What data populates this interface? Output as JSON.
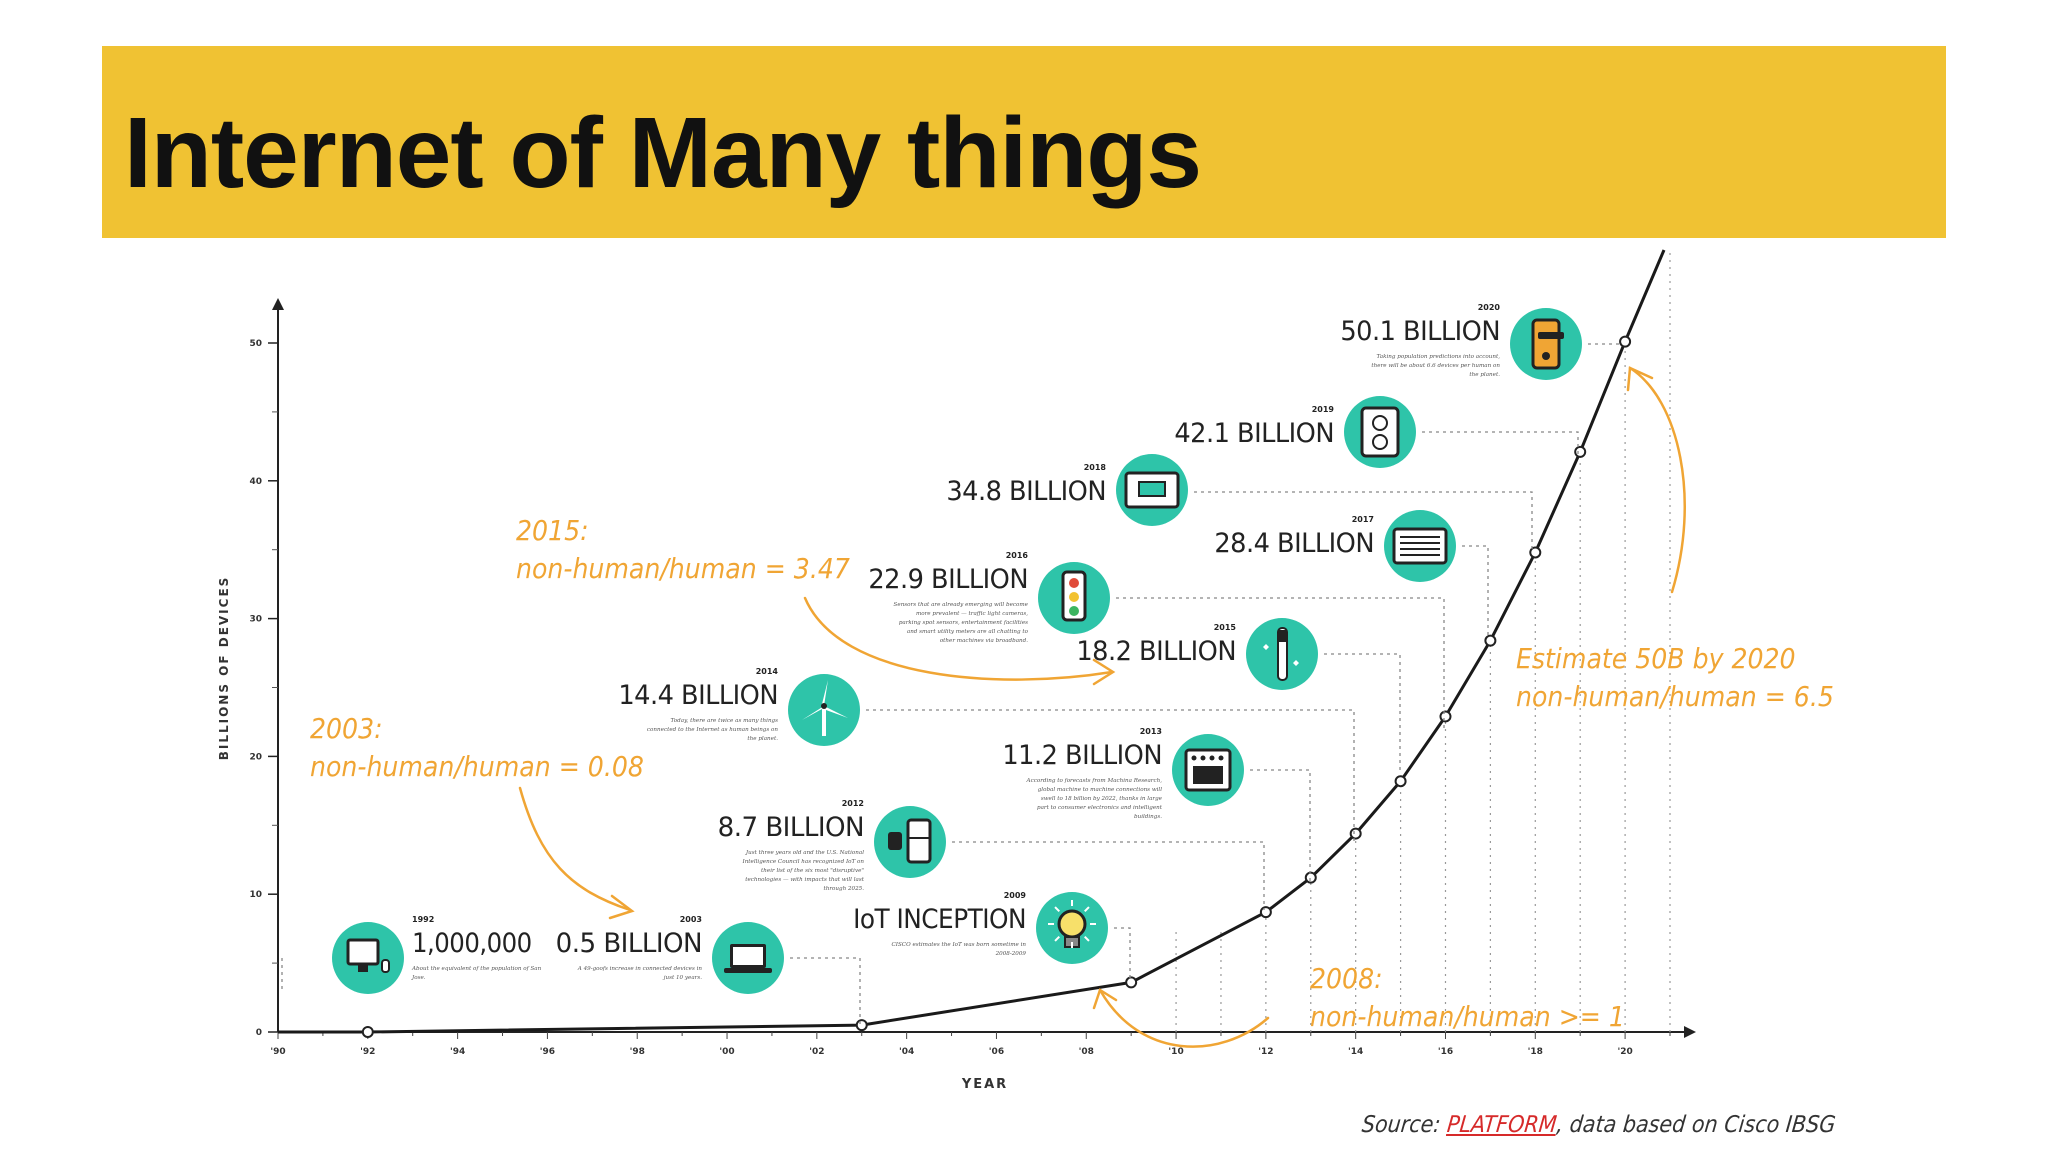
{
  "slide": {
    "title": "Internet of Many things",
    "source_prefix": "Source:",
    "source_link": "PLATFORM",
    "source_suffix": ", data based on Cisco IBSG"
  },
  "colors": {
    "banner": "#f0c233",
    "teal": "#2ec4a9",
    "orange": "#f0a534",
    "line": "#1a1a1a"
  },
  "chart_data": {
    "type": "line",
    "xlabel": "YEAR",
    "ylabel": "BILLIONS OF DEVICES",
    "xlim": [
      1990,
      2021
    ],
    "ylim": [
      0,
      50
    ],
    "x_ticks": [
      "'90",
      "'92",
      "'94",
      "'96",
      "'98",
      "'00",
      "'02",
      "'04",
      "'06",
      "'08",
      "'10",
      "'12",
      "'14",
      "'16",
      "'18",
      "'20"
    ],
    "y_ticks": [
      "0",
      "10",
      "20",
      "30",
      "40",
      "50"
    ],
    "points": [
      {
        "x": 1990,
        "y": 0
      },
      {
        "x": 1992,
        "y": 0.001
      },
      {
        "x": 2003,
        "y": 0.5
      },
      {
        "x": 2009,
        "y": 3.6
      },
      {
        "x": 2012,
        "y": 8.7
      },
      {
        "x": 2013,
        "y": 11.2
      },
      {
        "x": 2014,
        "y": 14.4
      },
      {
        "x": 2015,
        "y": 18.2
      },
      {
        "x": 2016,
        "y": 22.9
      },
      {
        "x": 2017,
        "y": 28.4
      },
      {
        "x": 2018,
        "y": 34.8
      },
      {
        "x": 2019,
        "y": 42.1
      },
      {
        "x": 2020,
        "y": 50.1
      }
    ],
    "milestones": [
      {
        "year": "1992",
        "value": "1,000,000",
        "icon": "computer-icon",
        "note": "About the equivalent of the population of San Jose.",
        "point": 1
      },
      {
        "year": "2003",
        "value": "0.5 BILLION",
        "icon": "laptop-icon",
        "note": "A 49-goofs increase in connected devices in just 10 years.",
        "point": 2
      },
      {
        "year": "2009",
        "value": "IoT INCEPTION",
        "icon": "lightbulb-icon",
        "note": "CISCO estimates the IoT was born sometime in 2008-2009",
        "point": 3
      },
      {
        "year": "2012",
        "value": "8.7 BILLION",
        "icon": "watch-fridge-icon",
        "note": "Just three years old and the U.S. National Intelligence Council has recognized IoT on their list of the six most \"disruptive\" technologies — with impacts that will last through 2025.",
        "point": 4
      },
      {
        "year": "2013",
        "value": "11.2 BILLION",
        "icon": "oven-icon",
        "note": "According to forecasts from Machina Research, global machine to machine connections will swell to 18 billion by 2022, thanks in large part to consumer electronics and intelligent buildings.",
        "point": 5
      },
      {
        "year": "2014",
        "value": "14.4 BILLION",
        "icon": "wind-turbine-icon",
        "note": "Today, there are twice as many things connected to the Internet as human beings on the planet.",
        "point": 6
      },
      {
        "year": "2015",
        "value": "18.2 BILLION",
        "icon": "toothbrush-icon",
        "note": "",
        "point": 7
      },
      {
        "year": "2016",
        "value": "22.9 BILLION",
        "icon": "traffic-light-icon",
        "note": "Sensors that are already emerging will become more prevalent — traffic light cameras, parking spot sensors, entertainment facilities and smart utility meters are all chatting to other machines via broadband.",
        "point": 8
      },
      {
        "year": "2017",
        "value": "28.4 BILLION",
        "icon": "window-unit-icon",
        "note": "",
        "point": 9
      },
      {
        "year": "2018",
        "value": "34.8 BILLION",
        "icon": "thermostat-icon",
        "note": "",
        "point": 10
      },
      {
        "year": "2019",
        "value": "42.1 BILLION",
        "icon": "outlet-icon",
        "note": "",
        "point": 11
      },
      {
        "year": "2020",
        "value": "50.1 BILLION",
        "icon": "door-lock-icon",
        "note": "Taking population predictions into account, there will be about 6.6 devices per human on the planet.",
        "point": 12
      }
    ],
    "annotations": [
      {
        "line1": "2003:",
        "line2": "non-human/human = 0.08"
      },
      {
        "line1": "2015:",
        "line2": "non-human/human = 3.47"
      },
      {
        "line1": "2008:",
        "line2": "non-human/human >= 1"
      },
      {
        "line1": "Estimate 50B by 2020",
        "line2": "non-human/human = 6.5"
      }
    ]
  }
}
